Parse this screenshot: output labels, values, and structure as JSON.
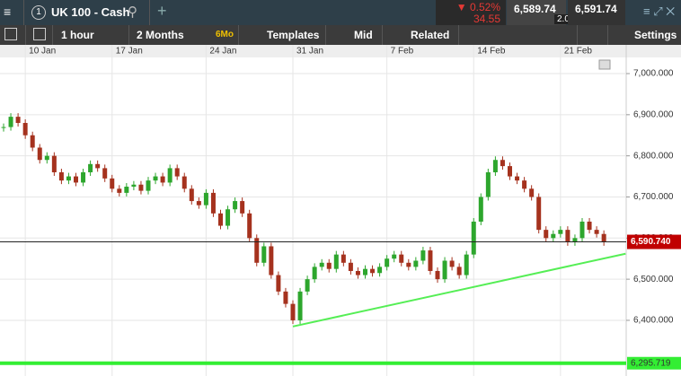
{
  "header": {
    "instrument_badge": "1",
    "instrument": "UK 100 - Cash",
    "change_pct": "0.52%",
    "change_abs": "34.55",
    "sell": "6,589.74",
    "spread": "2.00",
    "buy": "6,591.74"
  },
  "toolbar": {
    "interval": "1 hour",
    "range": "2 Months",
    "range_badge": "6Mo",
    "templates": "Templates",
    "price_type": "Mid",
    "related": "Related",
    "settings": "Settings"
  },
  "chart_data": {
    "type": "candlestick",
    "categories": [
      null,
      null,
      null,
      "10 Jan",
      null,
      null,
      null,
      null,
      null,
      null,
      null,
      null,
      null,
      null,
      null,
      "17 Jan",
      null,
      null,
      null,
      null,
      null,
      null,
      null,
      null,
      null,
      null,
      null,
      null,
      "24 Jan",
      null,
      null,
      null,
      null,
      null,
      null,
      null,
      null,
      null,
      null,
      null,
      "31 Jan",
      null,
      null,
      null,
      null,
      null,
      null,
      null,
      null,
      null,
      null,
      null,
      null,
      "7 Feb",
      null,
      null,
      null,
      null,
      null,
      null,
      null,
      null,
      null,
      null,
      null,
      "14 Feb",
      null,
      null,
      null,
      null,
      null,
      null,
      null,
      null,
      null,
      null,
      null,
      "21 Feb",
      null,
      null,
      null,
      null,
      null,
      null
    ],
    "values": [
      6870,
      6895,
      6880,
      6850,
      6820,
      6790,
      6800,
      6760,
      6740,
      6750,
      6735,
      6760,
      6780,
      6770,
      6745,
      6720,
      6710,
      6725,
      6730,
      6715,
      6740,
      6750,
      6735,
      6770,
      6750,
      6720,
      6690,
      6680,
      6710,
      6660,
      6630,
      6670,
      6690,
      6660,
      6600,
      6540,
      6580,
      6510,
      6470,
      6440,
      6400,
      6470,
      6500,
      6530,
      6540,
      6525,
      6560,
      6540,
      6520,
      6510,
      6525,
      6515,
      6530,
      6550,
      6560,
      6540,
      6530,
      6545,
      6570,
      6520,
      6500,
      6545,
      6530,
      6510,
      6560,
      6640,
      6700,
      6760,
      6790,
      6775,
      6750,
      6740,
      6720,
      6700,
      6620,
      6600,
      6610,
      6620,
      6590,
      6600,
      6640,
      6620,
      6610,
      6590
    ],
    "up_color": "#2da62d",
    "down_color": "#a5321e",
    "ylim": [
      6264.6,
      7039.3
    ],
    "yticks": [
      {
        "value": 6400,
        "label": "6,400.000"
      },
      {
        "value": 6500,
        "label": "6,500.000"
      },
      {
        "value": 6600,
        "label": "6,600.000"
      },
      {
        "value": 6700,
        "label": "6,700.000"
      },
      {
        "value": 6800,
        "label": "6,800.000"
      },
      {
        "value": 6900,
        "label": "6,900.000"
      },
      {
        "value": 7000,
        "label": "7,000.000"
      }
    ],
    "grid": true,
    "price_line": {
      "value": 6590.74,
      "label": "6,590.740",
      "color": "#c00000"
    },
    "support_line": {
      "value": 6295.719,
      "label": "6,295.719",
      "color": "#33ee33"
    },
    "trendline": {
      "start": {
        "index": 40,
        "value": 6385
      },
      "end": {
        "index": 86,
        "value": 6562
      },
      "color": "#55ee55"
    }
  }
}
